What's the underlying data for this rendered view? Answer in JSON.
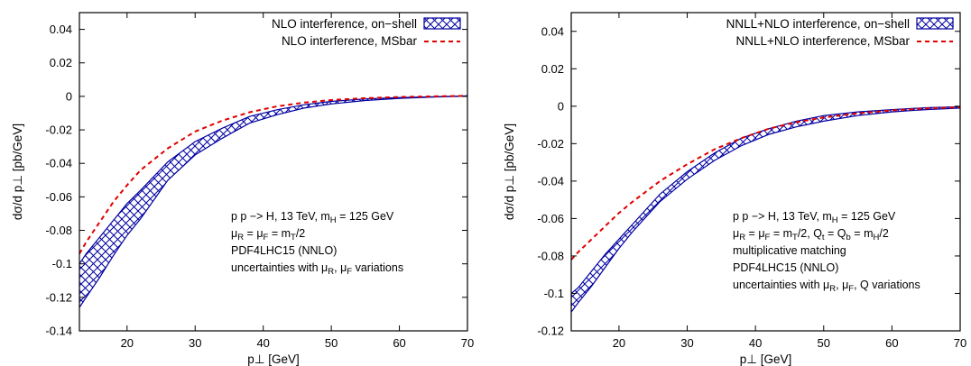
{
  "figure": {
    "xlabel": "p⊥ [GeV]",
    "ylabel": "dσ/d p⊥ [pb/GeV]"
  },
  "chart_data": [
    {
      "type": "area",
      "xlabel": "p⊥ [GeV]",
      "ylabel": "dσ/d p⊥ [pb/GeV]",
      "xlim": [
        13,
        70
      ],
      "ylim": [
        -0.14,
        0.05
      ],
      "xticks": [
        "20",
        "30",
        "40",
        "50",
        "60",
        "70"
      ],
      "yticks": [
        "0.04",
        "0.02",
        "0",
        "-0.02",
        "-0.04",
        "-0.06",
        "-0.08",
        "-0.1",
        "-0.12",
        "-0.14"
      ],
      "xtick_values": [
        20,
        30,
        40,
        50,
        60,
        70
      ],
      "ytick_values": [
        0.04,
        0.02,
        0,
        -0.02,
        -0.04,
        -0.06,
        -0.08,
        -0.1,
        -0.12,
        -0.14
      ],
      "grid": false,
      "legend_position": "top-right",
      "colors": {
        "band": "#0000a0",
        "dashed": "#e00000"
      },
      "band": {
        "name": "NLO interference, on−shell",
        "x": [
          13,
          14,
          16,
          18,
          20,
          22,
          26,
          30,
          34,
          38,
          42,
          46,
          50,
          55,
          60,
          65,
          70
        ],
        "upper": [
          -0.1,
          -0.094,
          -0.084,
          -0.074,
          -0.064,
          -0.056,
          -0.039,
          -0.027,
          -0.019,
          -0.012,
          -0.008,
          -0.005,
          -0.003,
          -0.0015,
          -0.0007,
          -0.0002,
          0.0003
        ],
        "lower": [
          -0.126,
          -0.12,
          -0.108,
          -0.095,
          -0.083,
          -0.073,
          -0.05,
          -0.035,
          -0.025,
          -0.016,
          -0.011,
          -0.007,
          -0.0045,
          -0.0025,
          -0.0012,
          -0.0004,
          0.0001
        ]
      },
      "series": [
        {
          "name": "NLO interference, MSbar",
          "x": [
            13,
            14,
            16,
            18,
            20,
            22,
            26,
            30,
            34,
            38,
            42,
            46,
            50,
            55,
            60,
            65,
            70
          ],
          "values": [
            -0.094,
            -0.087,
            -0.075,
            -0.063,
            -0.053,
            -0.044,
            -0.031,
            -0.021,
            -0.0145,
            -0.0095,
            -0.006,
            -0.0037,
            -0.0022,
            -0.0011,
            -0.0004,
            0.0,
            0.0003
          ]
        }
      ],
      "annotations": [
        {
          "text": "p p −> H, 13 TeV, m",
          "sub": "H",
          "tail": " = 125 GeV"
        },
        {
          "parts": [
            [
              "μ",
              ""
            ],
            [
              "R",
              "sub"
            ],
            [
              " = μ",
              ""
            ],
            [
              "F",
              "sub"
            ],
            [
              " = m",
              ""
            ],
            [
              "T",
              "sub"
            ],
            [
              "/2",
              ""
            ]
          ]
        },
        {
          "parts": [
            [
              "PDF4LHC15 (NNLO)",
              ""
            ]
          ]
        },
        {
          "parts": [
            [
              "uncertainties with μ",
              ""
            ],
            [
              "R",
              "sub"
            ],
            [
              ", μ",
              ""
            ],
            [
              "F",
              "sub"
            ],
            [
              " variations",
              ""
            ]
          ]
        }
      ]
    },
    {
      "type": "area",
      "xlabel": "p⊥ [GeV]",
      "ylabel": "dσ/d p⊥ [pb/GeV]",
      "xlim": [
        13,
        70
      ],
      "ylim": [
        -0.12,
        0.05
      ],
      "xticks": [
        "20",
        "30",
        "40",
        "50",
        "60",
        "70"
      ],
      "yticks": [
        "0.04",
        "0.02",
        "0",
        "-0.02",
        "-0.04",
        "-0.06",
        "-0.08",
        "-0.1",
        "-0.12"
      ],
      "xtick_values": [
        20,
        30,
        40,
        50,
        60,
        70
      ],
      "ytick_values": [
        0.04,
        0.02,
        0,
        -0.02,
        -0.04,
        -0.06,
        -0.08,
        -0.1,
        -0.12
      ],
      "grid": false,
      "legend_position": "top-right",
      "colors": {
        "band": "#0000a0",
        "dashed": "#e00000"
      },
      "band": {
        "name": "NNLL+NLO interference, on−shell",
        "x": [
          13,
          14,
          16,
          18,
          20,
          22,
          26,
          30,
          34,
          38,
          42,
          46,
          50,
          55,
          60,
          65,
          70
        ],
        "upper": [
          -0.1,
          -0.097,
          -0.088,
          -0.079,
          -0.071,
          -0.063,
          -0.047,
          -0.035,
          -0.025,
          -0.017,
          -0.012,
          -0.008,
          -0.005,
          -0.003,
          -0.0018,
          -0.0008,
          -0.0003
        ],
        "lower": [
          -0.11,
          -0.105,
          -0.096,
          -0.086,
          -0.076,
          -0.067,
          -0.051,
          -0.039,
          -0.029,
          -0.021,
          -0.015,
          -0.011,
          -0.008,
          -0.005,
          -0.003,
          -0.0018,
          -0.001
        ]
      },
      "series": [
        {
          "name": "NNLL+NLO interference, MSbar",
          "x": [
            13,
            14,
            16,
            18,
            20,
            22,
            26,
            30,
            34,
            38,
            42,
            46,
            50,
            55,
            60,
            65,
            70
          ],
          "values": [
            -0.082,
            -0.078,
            -0.071,
            -0.064,
            -0.057,
            -0.051,
            -0.04,
            -0.031,
            -0.023,
            -0.017,
            -0.012,
            -0.0085,
            -0.006,
            -0.0038,
            -0.0022,
            -0.0012,
            -0.0005
          ]
        }
      ],
      "annotations": [
        {
          "parts": [
            [
              "p p −> H, 13 TeV, m",
              ""
            ],
            [
              "H",
              "sub"
            ],
            [
              " = 125 GeV",
              ""
            ]
          ]
        },
        {
          "parts": [
            [
              "μ",
              ""
            ],
            [
              "R",
              "sub"
            ],
            [
              " = μ",
              ""
            ],
            [
              "F",
              "sub"
            ],
            [
              " = m",
              ""
            ],
            [
              "T",
              "sub"
            ],
            [
              "/2, Q",
              ""
            ],
            [
              "t",
              "sub"
            ],
            [
              " = Q",
              ""
            ],
            [
              "b",
              "sub"
            ],
            [
              " = m",
              ""
            ],
            [
              "H",
              "sub"
            ],
            [
              "/2",
              ""
            ]
          ]
        },
        {
          "parts": [
            [
              "multiplicative matching",
              ""
            ]
          ]
        },
        {
          "parts": [
            [
              "PDF4LHC15 (NNLO)",
              ""
            ]
          ]
        },
        {
          "parts": [
            [
              "uncertainties with μ",
              ""
            ],
            [
              "R",
              "sub"
            ],
            [
              ", μ",
              ""
            ],
            [
              "F",
              "sub"
            ],
            [
              ", Q variations",
              ""
            ]
          ]
        }
      ]
    }
  ]
}
